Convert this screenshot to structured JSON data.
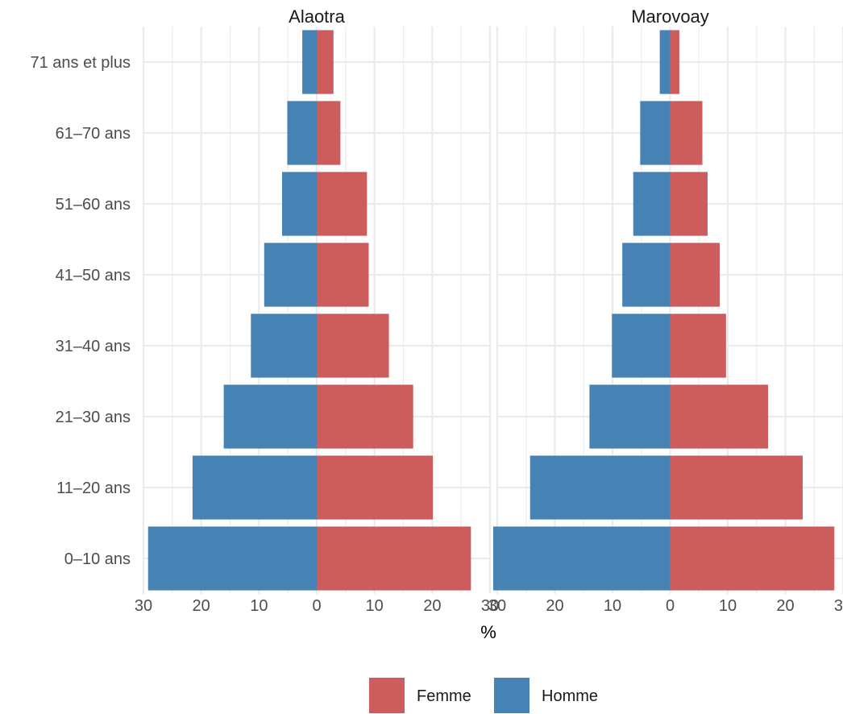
{
  "chart_data": {
    "type": "bar",
    "subtype": "population-pyramid",
    "xlabel": "%",
    "xlim": [
      -30,
      30
    ],
    "x_ticks": [
      {
        "value": -30,
        "label": "30"
      },
      {
        "value": -20,
        "label": "20"
      },
      {
        "value": -10,
        "label": "10"
      },
      {
        "value": 0,
        "label": "0"
      },
      {
        "value": 10,
        "label": "10"
      },
      {
        "value": 20,
        "label": "20"
      },
      {
        "value": 30,
        "label": "30"
      }
    ],
    "categories": [
      "0–10 ans",
      "11–20 ans",
      "21–30 ans",
      "31–40 ans",
      "41–50 ans",
      "51–60 ans",
      "61–70 ans",
      "71 ans et plus"
    ],
    "colors": {
      "Femme": "#cd5c5c",
      "Homme": "#4682b4",
      "grid": "#ebebeb"
    },
    "legend": {
      "position": "bottom",
      "entries": [
        "Femme",
        "Homme"
      ]
    },
    "grid": true,
    "panels": [
      {
        "name": "Alaotra",
        "series": [
          {
            "name": "Femme",
            "values": [
              26.7,
              20.1,
              16.7,
              12.5,
              9.0,
              8.7,
              4.1,
              2.9
            ]
          },
          {
            "name": "Homme",
            "values": [
              29.2,
              21.5,
              16.1,
              11.4,
              9.1,
              6.0,
              5.1,
              2.5
            ]
          }
        ]
      },
      {
        "name": "Marovoay",
        "series": [
          {
            "name": "Femme",
            "values": [
              28.5,
              23.0,
              17.0,
              9.7,
              8.6,
              6.5,
              5.6,
              1.6
            ]
          },
          {
            "name": "Homme",
            "values": [
              30.7,
              24.3,
              14.0,
              10.1,
              8.3,
              6.4,
              5.2,
              1.8
            ]
          }
        ]
      }
    ]
  }
}
